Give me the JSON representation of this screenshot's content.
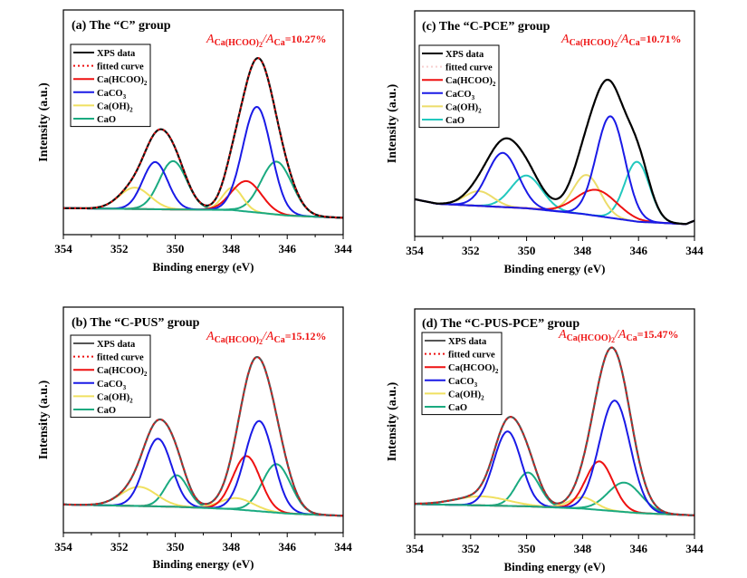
{
  "chart_data": [
    {
      "id": "a",
      "type": "line",
      "title": "(a) The “C” group",
      "annotation": {
        "prefix": "A",
        "sub1": "Ca(HCOO)2",
        "mid": "/A",
        "sub2": "Ca",
        "value": "=10.27%"
      },
      "xlabel": "Binding energy (eV)",
      "ylabel": "Intensity (a.u.)",
      "xlim": [
        354,
        344
      ],
      "xticks": [
        "354",
        "352",
        "350",
        "348",
        "346",
        "344"
      ],
      "ylim": [
        0,
        1
      ],
      "baseline": {
        "x": [
          354,
          350,
          348,
          346,
          344
        ],
        "y": [
          0.118,
          0.112,
          0.11,
          0.085,
          0.075
        ]
      },
      "components": [
        {
          "name": "Ca(HCOO)2",
          "color": "#ee1111",
          "peaks": [
            [
              347.45,
              0.135,
              1.25
            ]
          ]
        },
        {
          "name": "CaCO3",
          "color": "#1a1ae6",
          "peaks": [
            [
              350.72,
              0.21,
              1.05
            ],
            [
              347.08,
              0.47,
              1.2
            ]
          ]
        },
        {
          "name": "Ca(OH)2",
          "color": "#f0e060",
          "peaks": [
            [
              351.45,
              0.095,
              1.3
            ],
            [
              347.95,
              0.1,
              0.85
            ]
          ]
        },
        {
          "name": "CaO",
          "color": "#1aaa80",
          "peaks": [
            [
              350.08,
              0.215,
              1.15
            ],
            [
              346.38,
              0.235,
              1.3
            ]
          ]
        }
      ],
      "show_fit": true,
      "data_color": "#111111",
      "legend": [
        "XPS data",
        "fitted curve",
        "Ca(HCOO)2",
        "CaCO3",
        "Ca(OH)2",
        "CaO"
      ],
      "legend_position": "top-left"
    },
    {
      "id": "c",
      "type": "line",
      "title": "(c) The “C-PCE” group",
      "annotation": {
        "prefix": "A",
        "sub1": "Ca(HCOO)2",
        "mid": "/A",
        "sub2": "Ca",
        "value": "=10.71%"
      },
      "xlabel": "Binding energy (eV)",
      "ylabel": "Intensity (a.u.)",
      "xlim": [
        354,
        344
      ],
      "xticks": [
        "354",
        "352",
        "350",
        "348",
        "346",
        "344"
      ],
      "ylim": [
        0,
        1
      ],
      "baseline": {
        "x": [
          354,
          353.2,
          350,
          348,
          346,
          344.3,
          344
        ],
        "y": [
          0.165,
          0.145,
          0.125,
          0.1,
          0.065,
          0.055,
          0.07
        ]
      },
      "components": [
        {
          "name": "Ca(HCOO)2",
          "color": "#ee1111",
          "peaks": [
            [
              347.5,
              0.115,
              1.7
            ]
          ]
        },
        {
          "name": "CaCO3",
          "color": "#1a1ae6",
          "peaks": [
            [
              350.85,
              0.24,
              1.3
            ],
            [
              347.0,
              0.45,
              1.2
            ]
          ]
        },
        {
          "name": "Ca(OH)2",
          "color": "#ecdc6a",
          "peaks": [
            [
              351.7,
              0.065,
              1.2
            ],
            [
              347.85,
              0.175,
              1.15
            ]
          ]
        },
        {
          "name": "CaO",
          "color": "#22c8be",
          "peaks": [
            [
              350.0,
              0.145,
              1.3
            ],
            [
              346.05,
              0.265,
              1.05
            ]
          ]
        }
      ],
      "show_fit": false,
      "data_color": "#000000",
      "legend": [
        "XPS data",
        "fitted curve",
        "Ca(HCOO)2",
        "CaCO3",
        "Ca(OH)2",
        "CaO"
      ],
      "legend_position": "top-left"
    },
    {
      "id": "b",
      "type": "line",
      "title": "(b) The “C-PUS” group",
      "annotation": {
        "prefix": "A",
        "sub1": "Ca(HCOO)2",
        "mid": "/A",
        "sub2": "Ca",
        "value": "=15.12%"
      },
      "xlabel": "Binding energy (eV)",
      "ylabel": "Intensity (a.u.)",
      "xlim": [
        354,
        344
      ],
      "xticks": [
        "354",
        "352",
        "350",
        "348",
        "346",
        "344"
      ],
      "ylim": [
        0,
        1
      ],
      "baseline": {
        "x": [
          354,
          350,
          348,
          346,
          344
        ],
        "y": [
          0.125,
          0.115,
          0.105,
          0.085,
          0.075
        ]
      },
      "components": [
        {
          "name": "Ca(HCOO)2",
          "color": "#ee1111",
          "peaks": [
            [
              347.45,
              0.24,
              1.15
            ]
          ]
        },
        {
          "name": "CaCO3",
          "color": "#1a1ae6",
          "peaks": [
            [
              350.62,
              0.3,
              1.15
            ],
            [
              347.0,
              0.4,
              1.2
            ]
          ]
        },
        {
          "name": "Ca(OH)2",
          "color": "#f0e060",
          "peaks": [
            [
              351.3,
              0.085,
              1.5
            ],
            [
              347.8,
              0.05,
              1.4
            ]
          ]
        },
        {
          "name": "CaO",
          "color": "#1aaa80",
          "peaks": [
            [
              349.95,
              0.14,
              0.95
            ],
            [
              346.38,
              0.215,
              1.2
            ]
          ]
        }
      ],
      "show_fit": true,
      "data_color": "#555555",
      "legend": [
        "XPS data",
        "fitted curve",
        "Ca(HCOO)2",
        "CaCO3",
        "Ca(OH)2",
        "CaO"
      ],
      "legend_position": "top-left"
    },
    {
      "id": "d",
      "type": "line",
      "title": "(d) The “C-PUS-PCE” group",
      "annotation": {
        "prefix": "A",
        "sub1": "Ca(HCOO)2",
        "mid": "/A",
        "sub2": "Ca",
        "value": "=15.47%"
      },
      "xlabel": "Binding energy (eV)",
      "ylabel": "Intensity (a.u.)",
      "xlim": [
        354,
        344
      ],
      "xticks": [
        "354",
        "352",
        "350",
        "348",
        "346",
        "344"
      ],
      "ylim": [
        0,
        1
      ],
      "baseline": {
        "x": [
          354,
          350,
          348,
          346,
          344
        ],
        "y": [
          0.135,
          0.125,
          0.115,
          0.095,
          0.085
        ]
      },
      "components": [
        {
          "name": "Ca(HCOO)2",
          "color": "#ee1111",
          "peaks": [
            [
              347.4,
              0.215,
              1.15
            ]
          ]
        },
        {
          "name": "CaCO3",
          "color": "#1a1ae6",
          "peaks": [
            [
              350.68,
              0.33,
              1.15
            ],
            [
              346.85,
              0.49,
              1.3
            ]
          ]
        },
        {
          "name": "Ca(OH)2",
          "color": "#f0e060",
          "peaks": [
            [
              351.6,
              0.04,
              2.2
            ],
            [
              348.0,
              0.05,
              1.1
            ]
          ]
        },
        {
          "name": "CaO",
          "color": "#1aaa80",
          "peaks": [
            [
              349.95,
              0.15,
              1.0
            ],
            [
              346.5,
              0.13,
              1.4
            ]
          ]
        }
      ],
      "show_fit": true,
      "data_color": "#555555",
      "legend": [
        "XPS data",
        "fitted curve",
        "Ca(HCOO)2",
        "CaCO3",
        "Ca(OH)2",
        "CaO"
      ],
      "legend_position": "top-left"
    }
  ]
}
